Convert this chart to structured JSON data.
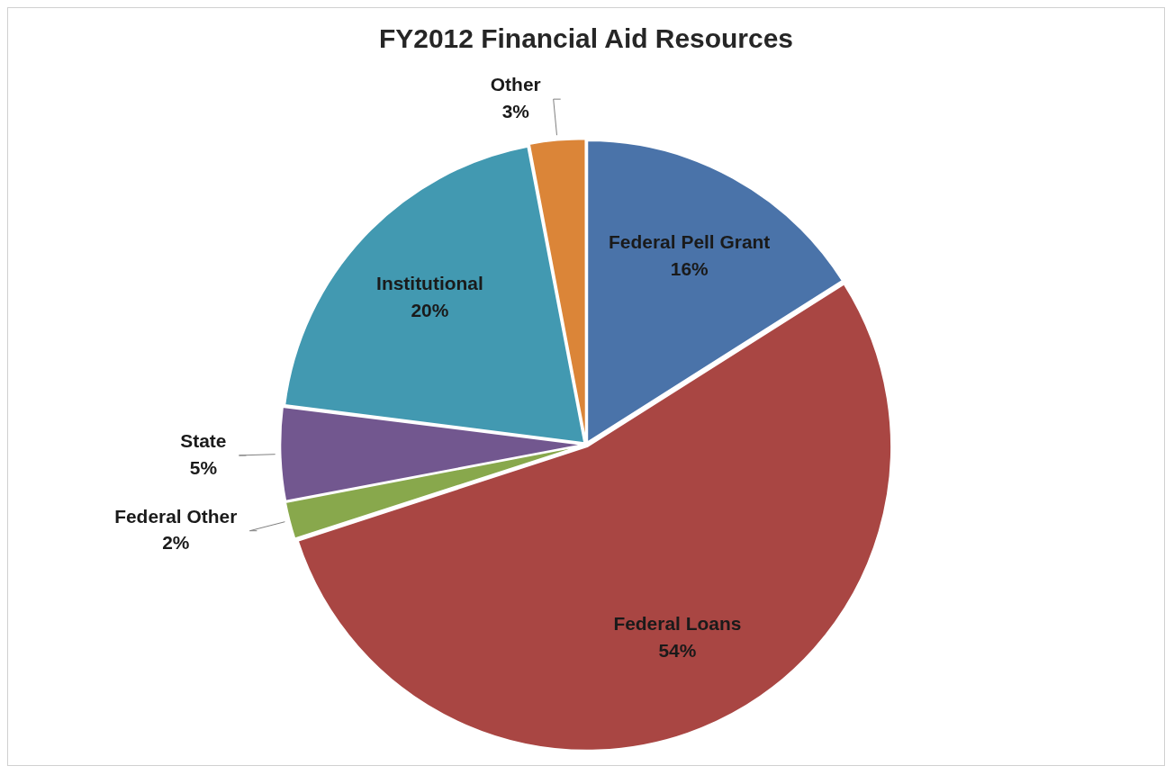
{
  "chart_data": {
    "type": "pie",
    "title": "FY2012 Financial Aid Resources",
    "categories": [
      "Federal Pell Grant",
      "Federal Loans",
      "Federal Other",
      "State",
      "Institutional",
      "Other"
    ],
    "values": [
      16,
      54,
      2,
      5,
      20,
      3
    ],
    "colors": [
      "#4a73a9",
      "#a94643",
      "#88a84c",
      "#72578f",
      "#4299b1",
      "#db8538"
    ],
    "value_labels": [
      "16%",
      "54%",
      "2%",
      "5%",
      "20%",
      "3%"
    ],
    "legend": false
  }
}
